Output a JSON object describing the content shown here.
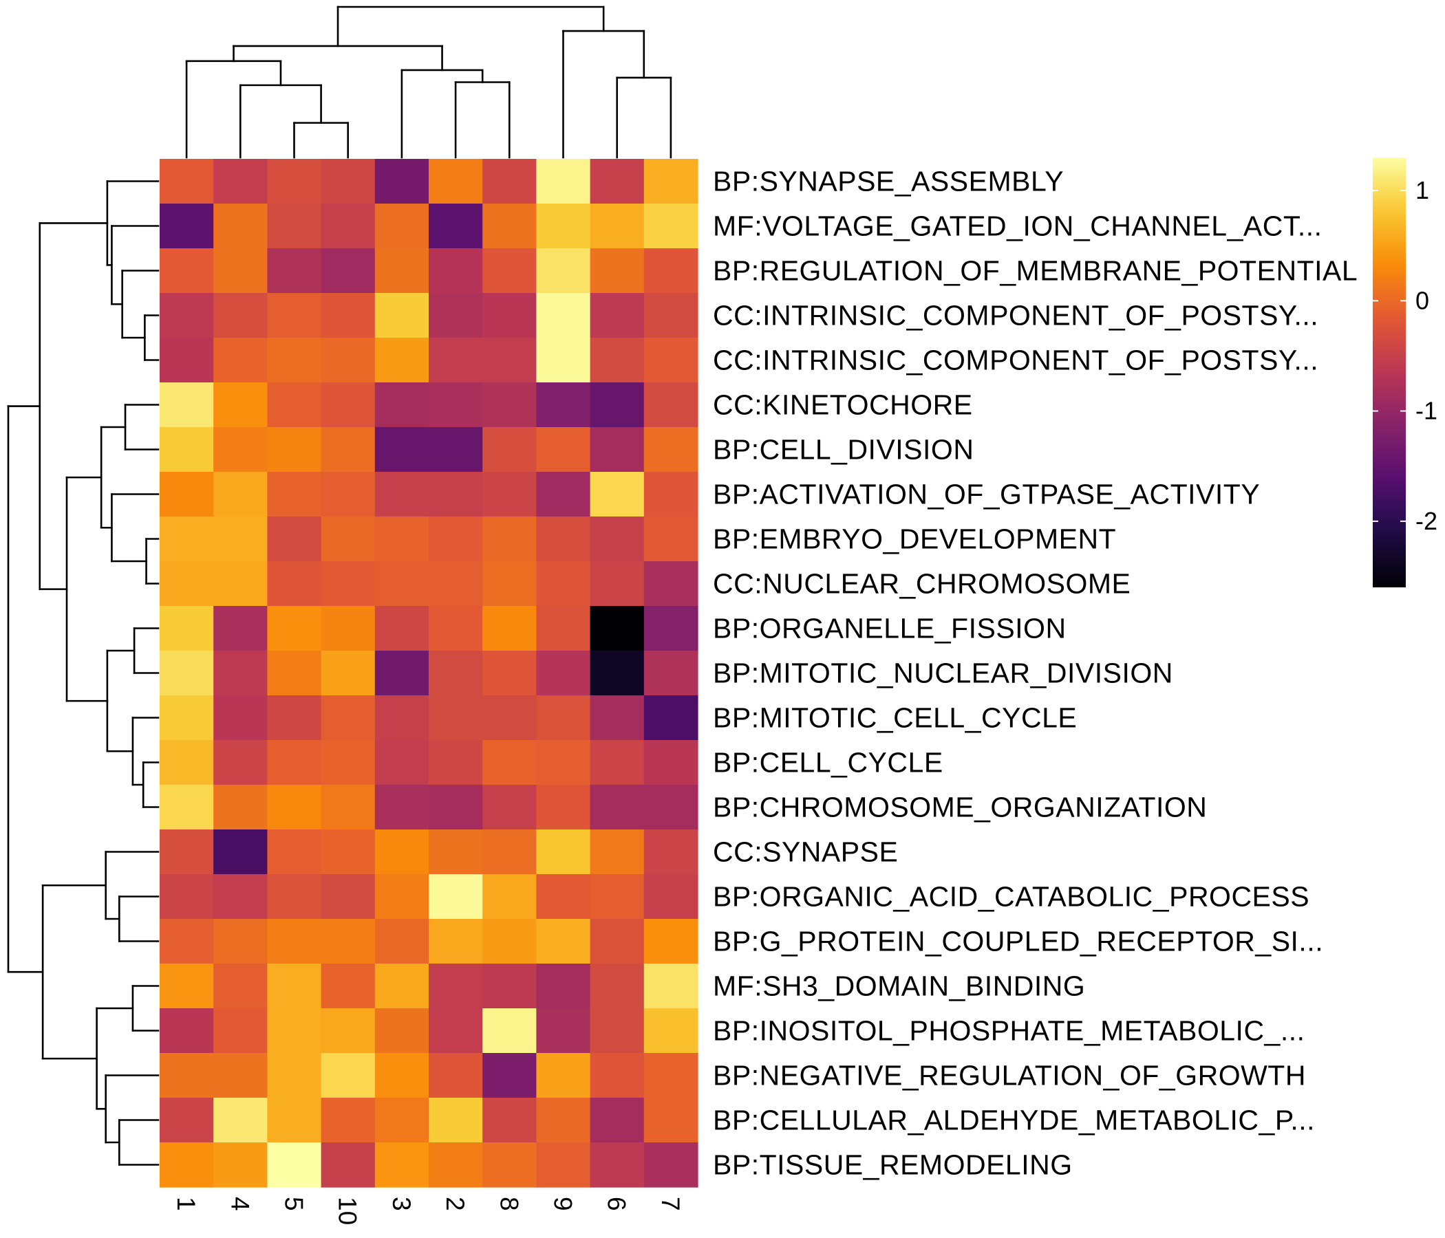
{
  "chart_data": {
    "type": "heatmap",
    "title": "",
    "xlabel": "",
    "ylabel": "",
    "colormap": "inferno",
    "legend_placement": "right",
    "columns": [
      "1",
      "4",
      "5",
      "10",
      "3",
      "2",
      "8",
      "9",
      "6",
      "7"
    ],
    "rows": [
      "BP:SYNAPSE_ASSEMBLY",
      "MF:VOLTAGE_GATED_ION_CHANNEL_ACT...",
      "BP:REGULATION_OF_MEMBRANE_POTENTIAL",
      "CC:INTRINSIC_COMPONENT_OF_POSTSY...",
      "CC:INTRINSIC_COMPONENT_OF_POSTSY...",
      "CC:KINETOCHORE",
      "BP:CELL_DIVISION",
      "BP:ACTIVATION_OF_GTPASE_ACTIVITY",
      "BP:EMBRYO_DEVELOPMENT",
      "CC:NUCLEAR_CHROMOSOME",
      "BP:ORGANELLE_FISSION",
      "BP:MITOTIC_NUCLEAR_DIVISION",
      "BP:MITOTIC_CELL_CYCLE",
      "BP:CELL_CYCLE",
      "BP:CHROMOSOME_ORGANIZATION",
      "CC:SYNAPSE",
      "BP:ORGANIC_ACID_CATABOLIC_PROCESS",
      "BP:G_PROTEIN_COUPLED_RECEPTOR_SI...",
      "MF:SH3_DOMAIN_BINDING",
      "BP:INOSITOL_PHOSPHATE_METABOLIC_...",
      "BP:NEGATIVE_REGULATION_OF_GROWTH",
      "BP:CELLULAR_ALDEHYDE_METABOLIC_P...",
      "BP:TISSUE_REMODELING"
    ],
    "values": [
      [
        -0.15,
        -0.55,
        -0.3,
        -0.4,
        -1.3,
        0.2,
        -0.4,
        1.2,
        -0.5,
        0.6
      ],
      [
        -1.55,
        0.1,
        -0.35,
        -0.5,
        0.05,
        -1.55,
        0.1,
        0.85,
        0.6,
        0.9
      ],
      [
        -0.15,
        0.1,
        -0.75,
        -0.9,
        0.1,
        -0.7,
        -0.2,
        1.05,
        0.1,
        -0.2
      ],
      [
        -0.6,
        -0.3,
        -0.1,
        -0.2,
        0.85,
        -0.75,
        -0.65,
        1.25,
        -0.6,
        -0.35
      ],
      [
        -0.65,
        -0.05,
        0.05,
        0.0,
        0.45,
        -0.55,
        -0.55,
        1.25,
        -0.35,
        -0.15
      ],
      [
        1.1,
        0.35,
        -0.1,
        -0.2,
        -0.85,
        -0.8,
        -0.75,
        -1.2,
        -1.45,
        -0.35
      ],
      [
        0.85,
        0.2,
        0.25,
        0.05,
        -1.45,
        -1.45,
        -0.3,
        -0.1,
        -0.85,
        0.05
      ],
      [
        0.3,
        0.55,
        -0.05,
        -0.1,
        -0.5,
        -0.5,
        -0.45,
        -0.9,
        0.95,
        -0.2
      ],
      [
        0.6,
        0.6,
        -0.35,
        0.0,
        -0.05,
        -0.15,
        0.0,
        -0.3,
        -0.5,
        -0.15
      ],
      [
        0.55,
        0.55,
        -0.2,
        -0.15,
        -0.1,
        -0.1,
        0.05,
        -0.2,
        -0.45,
        -0.8
      ],
      [
        0.85,
        -0.8,
        0.35,
        0.25,
        -0.4,
        -0.15,
        0.3,
        -0.25,
        -2.6,
        -1.15
      ],
      [
        1.0,
        -0.6,
        0.2,
        0.5,
        -1.35,
        -0.35,
        -0.2,
        -0.7,
        -2.35,
        -0.75
      ],
      [
        0.85,
        -0.65,
        -0.4,
        -0.1,
        -0.5,
        -0.35,
        -0.35,
        -0.25,
        -0.85,
        -1.7
      ],
      [
        0.7,
        -0.45,
        -0.1,
        -0.05,
        -0.55,
        -0.4,
        -0.05,
        -0.1,
        -0.45,
        -0.65
      ],
      [
        0.95,
        0.1,
        0.3,
        0.15,
        -0.8,
        -0.85,
        -0.5,
        -0.2,
        -0.85,
        -0.85
      ],
      [
        -0.3,
        -1.75,
        -0.1,
        -0.05,
        0.3,
        0.1,
        0.05,
        0.8,
        0.15,
        -0.45
      ],
      [
        -0.45,
        -0.55,
        -0.25,
        -0.35,
        0.2,
        1.25,
        0.55,
        -0.15,
        -0.1,
        -0.5
      ],
      [
        -0.1,
        0.05,
        0.2,
        0.2,
        0.0,
        0.55,
        0.45,
        0.6,
        -0.25,
        0.35
      ],
      [
        0.4,
        -0.1,
        0.6,
        -0.05,
        0.55,
        -0.55,
        -0.6,
        -0.85,
        -0.35,
        1.05
      ],
      [
        -0.65,
        -0.15,
        0.6,
        0.55,
        0.1,
        -0.55,
        1.2,
        -0.8,
        -0.35,
        0.75
      ],
      [
        0.1,
        0.1,
        0.6,
        0.95,
        0.35,
        -0.2,
        -1.25,
        0.5,
        -0.2,
        -0.05
      ],
      [
        -0.45,
        1.1,
        0.6,
        -0.05,
        0.15,
        0.85,
        -0.4,
        0.0,
        -0.85,
        -0.05
      ],
      [
        0.35,
        0.45,
        1.3,
        -0.5,
        0.4,
        0.2,
        0.05,
        -0.1,
        -0.6,
        -0.8
      ]
    ],
    "color_range": [
      -2.6,
      1.3
    ],
    "legend_ticks": [
      1,
      0,
      -1,
      -2
    ]
  }
}
